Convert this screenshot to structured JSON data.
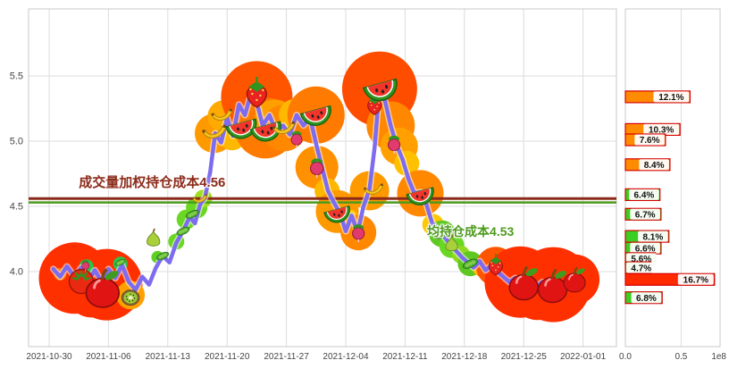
{
  "colors": {
    "background": "#ffffff",
    "grid": "#dcdcdc",
    "spine": "#c8c8c8",
    "tick_text": "#444444",
    "bar_edge": "#d40000",
    "label_box_bg": "#ffffff",
    "label_box_text": "#111111"
  },
  "chart_data": [
    {
      "type": "line",
      "title": "",
      "line_color": "#7d6cf0",
      "x_ticks": [
        "2021-10-30",
        "2021-11-06",
        "2021-11-13",
        "2021-11-20",
        "2021-11-27",
        "2021-12-04",
        "2021-12-11",
        "2021-12-18",
        "2021-12-25",
        "2022-01-01"
      ],
      "y_ticks": [
        4.0,
        4.5,
        5.0,
        5.5
      ],
      "ylim": [
        3.43,
        6.01
      ],
      "grid": "on",
      "line": [
        [
          0.5,
          4.02
        ],
        [
          1.3,
          3.96
        ],
        [
          2.1,
          4.04
        ],
        [
          3,
          3.96
        ],
        [
          3.8,
          4.03
        ],
        [
          4.6,
          3.93
        ],
        [
          5.4,
          4.01
        ],
        [
          6.2,
          3.92
        ],
        [
          7,
          4.02
        ],
        [
          7.8,
          3.95
        ],
        [
          8.6,
          4.05
        ],
        [
          9.4,
          3.92
        ],
        [
          10.2,
          3.86
        ],
        [
          11,
          3.96
        ],
        [
          11.8,
          3.9
        ],
        [
          12.6,
          4.03
        ],
        [
          13.4,
          4.12
        ],
        [
          14.2,
          4.07
        ],
        [
          15,
          4.22
        ],
        [
          15.8,
          4.31
        ],
        [
          16.6,
          4.42
        ],
        [
          17.2,
          4.37
        ],
        [
          17.8,
          4.51
        ],
        [
          18.4,
          4.57
        ],
        [
          19,
          4.76
        ],
        [
          19.6,
          5.06
        ],
        [
          20.3,
          4.99
        ],
        [
          21,
          5.18
        ],
        [
          21.7,
          5.04
        ],
        [
          22.4,
          5.28
        ],
        [
          23.1,
          5.2
        ],
        [
          23.8,
          5.36
        ],
        [
          24.5,
          5.3
        ],
        [
          25.2,
          5.12
        ],
        [
          26,
          5.2
        ],
        [
          26.8,
          5.07
        ],
        [
          27.6,
          5.12
        ],
        [
          28.4,
          5.05
        ],
        [
          29.2,
          5.2
        ],
        [
          30,
          5.12
        ],
        [
          30.8,
          5.18
        ],
        [
          31.5,
          4.98
        ],
        [
          32.2,
          4.8
        ],
        [
          32.9,
          4.62
        ],
        [
          33.6,
          4.53
        ],
        [
          34.3,
          4.45
        ],
        [
          35,
          4.31
        ],
        [
          35.7,
          4.43
        ],
        [
          36.4,
          4.3
        ],
        [
          37.1,
          4.5
        ],
        [
          37.8,
          4.63
        ],
        [
          38.4,
          4.95
        ],
        [
          39,
          5.42
        ],
        [
          39.6,
          5.32
        ],
        [
          40.3,
          5.12
        ],
        [
          41,
          4.97
        ],
        [
          41.7,
          4.86
        ],
        [
          42.4,
          4.71
        ],
        [
          43.1,
          4.6
        ],
        [
          43.8,
          4.61
        ],
        [
          44.5,
          4.52
        ],
        [
          45.2,
          4.37
        ],
        [
          45.9,
          4.32
        ],
        [
          46.6,
          4.27
        ],
        [
          47.3,
          4.21
        ],
        [
          48,
          4.16
        ],
        [
          48.7,
          4.11
        ],
        [
          49.4,
          4.07
        ],
        [
          50.1,
          4.03
        ],
        [
          50.8,
          4.08
        ],
        [
          51.5,
          4.01
        ],
        [
          52.2,
          4.05
        ],
        [
          52.9,
          4.0
        ],
        [
          53.6,
          3.96
        ],
        [
          54.3,
          3.92
        ],
        [
          55,
          3.95
        ],
        [
          55.8,
          3.9
        ],
        [
          56.6,
          3.93
        ],
        [
          57.4,
          3.88
        ],
        [
          58.2,
          3.92
        ],
        [
          59,
          3.88
        ],
        [
          60,
          3.91
        ],
        [
          61,
          3.88
        ],
        [
          62,
          3.91
        ]
      ],
      "bubbles": [
        [
          3,
          3.95,
          40,
          "#ff3000"
        ],
        [
          6.8,
          3.9,
          40,
          "#ff3000"
        ],
        [
          5,
          3.84,
          28,
          "#ff3000"
        ],
        [
          9.6,
          3.82,
          16,
          "#ffa000"
        ],
        [
          4.4,
          4.04,
          8,
          "#2fc24a"
        ],
        [
          8.4,
          4.06,
          8,
          "#2fc24a"
        ],
        [
          1.3,
          3.98,
          7,
          "#ff7a00"
        ],
        [
          12.8,
          4.11,
          7,
          "#5ecf25"
        ],
        [
          15,
          4.23,
          9,
          "#6ad723"
        ],
        [
          16.2,
          4.4,
          11,
          "#6ad723"
        ],
        [
          17.4,
          4.49,
          12,
          "#6ad723"
        ],
        [
          18.2,
          4.56,
          10,
          "#9fdf1f"
        ],
        [
          19.5,
          5.06,
          22,
          "#ff9900"
        ],
        [
          20.6,
          5.19,
          18,
          "#ffaa00"
        ],
        [
          21.6,
          5.04,
          16,
          "#ffb800"
        ],
        [
          22.5,
          5.28,
          19,
          "#ff9900"
        ],
        [
          23.4,
          5.25,
          26,
          "#ff7700"
        ],
        [
          24.5,
          5.34,
          40,
          "#ff5500"
        ],
        [
          25.5,
          5.1,
          34,
          "#ff7a00"
        ],
        [
          26.6,
          5.17,
          22,
          "#ffa000"
        ],
        [
          27.7,
          5.1,
          26,
          "#ff8800"
        ],
        [
          29,
          5.2,
          18,
          "#ffb800"
        ],
        [
          30.2,
          5.15,
          14,
          "#ffc800"
        ],
        [
          31.5,
          5.2,
          32,
          "#ff7a00"
        ],
        [
          31.6,
          4.8,
          24,
          "#ff9100"
        ],
        [
          32.8,
          4.62,
          14,
          "#ffb800"
        ],
        [
          34,
          4.46,
          24,
          "#ff9900"
        ],
        [
          35.4,
          4.4,
          11,
          "#ffc800"
        ],
        [
          36.5,
          4.3,
          20,
          "#ff8800"
        ],
        [
          37.8,
          4.62,
          22,
          "#ff9900"
        ],
        [
          39,
          5.4,
          42,
          "#ff4d00"
        ],
        [
          40.3,
          5.12,
          27,
          "#ff8800"
        ],
        [
          41.3,
          4.96,
          21,
          "#ffa000"
        ],
        [
          42.2,
          4.83,
          14,
          "#ffc000"
        ],
        [
          43.8,
          4.6,
          26,
          "#ff8800"
        ],
        [
          45.3,
          4.36,
          12,
          "#ffc800"
        ],
        [
          46.4,
          4.29,
          15,
          "#5fc722"
        ],
        [
          47.5,
          4.2,
          14,
          "#6ad723"
        ],
        [
          48.6,
          4.13,
          10,
          "#8fd91f"
        ],
        [
          49.7,
          4.06,
          14,
          "#5fc722"
        ],
        [
          51,
          4.03,
          10,
          "#ffb800"
        ],
        [
          52.7,
          4.04,
          22,
          "#ff5500"
        ],
        [
          55.6,
          3.92,
          40,
          "#ff3000"
        ],
        [
          59.5,
          3.9,
          42,
          "#ff3000"
        ],
        [
          57.6,
          3.82,
          28,
          "#ff3000"
        ],
        [
          62,
          3.94,
          28,
          "#ff3000"
        ]
      ],
      "fruits": [
        [
          3.8,
          3.93,
          36,
          "tomato"
        ],
        [
          6.3,
          3.86,
          46,
          "apple"
        ],
        [
          9.6,
          3.8,
          26,
          "kiwi"
        ],
        [
          4.3,
          4.05,
          15,
          "radish"
        ],
        [
          8.4,
          4.07,
          15,
          "peas"
        ],
        [
          12.3,
          4.24,
          26,
          "pear"
        ],
        [
          13.4,
          4.12,
          18,
          "peas"
        ],
        [
          15.8,
          4.31,
          19,
          "peas"
        ],
        [
          16.9,
          4.44,
          19,
          "peas"
        ],
        [
          17.8,
          4.56,
          20,
          "banana"
        ],
        [
          19.5,
          5.07,
          32,
          "banana"
        ],
        [
          20.4,
          5.2,
          28,
          "banana"
        ],
        [
          22.7,
          5.12,
          38,
          "watermelon"
        ],
        [
          24.5,
          5.37,
          40,
          "strawberry"
        ],
        [
          25.6,
          5.1,
          38,
          "watermelon"
        ],
        [
          27.7,
          5.1,
          30,
          "banana"
        ],
        [
          29.2,
          5.02,
          22,
          "radish"
        ],
        [
          31.5,
          5.22,
          38,
          "watermelon"
        ],
        [
          31.6,
          4.8,
          26,
          "radish"
        ],
        [
          34,
          4.46,
          32,
          "watermelon"
        ],
        [
          36.5,
          4.3,
          24,
          "radish"
        ],
        [
          38.3,
          4.63,
          26,
          "banana"
        ],
        [
          38.4,
          5.28,
          28,
          "strawberry"
        ],
        [
          39.1,
          5.42,
          42,
          "watermelon"
        ],
        [
          40.7,
          4.98,
          24,
          "radish"
        ],
        [
          43.8,
          4.6,
          34,
          "watermelon"
        ],
        [
          46.4,
          4.29,
          22,
          "peas"
        ],
        [
          47.5,
          4.2,
          24,
          "pear"
        ],
        [
          49.7,
          4.06,
          22,
          "peas"
        ],
        [
          52.7,
          4.05,
          28,
          "strawberry"
        ],
        [
          56,
          3.9,
          40,
          "apple"
        ],
        [
          59.4,
          3.88,
          40,
          "apple"
        ],
        [
          62,
          3.93,
          30,
          "apple"
        ]
      ],
      "ref_lines": [
        {
          "price": 4.56,
          "color": "#8b2b1a",
          "line_width": 3,
          "label": "成交量加权持仓成本4.56",
          "label_day": 3.5,
          "label_dy": -26
        },
        {
          "price": 4.53,
          "color": "#4c9a1c",
          "line_width": 2.5,
          "label": "均持仓成本4.53",
          "label_day": 44.6,
          "label_dy": 24
        }
      ]
    },
    {
      "type": "bar",
      "orientation": "horizontal",
      "x_ticks": [
        0.0,
        0.5
      ],
      "x_unit": "1e8",
      "xlim": [
        0,
        0.85
      ],
      "legend": "none",
      "bars": [
        {
          "price": 5.34,
          "pct": "12.1%",
          "value": 0.58,
          "color": "#ff8c00"
        },
        {
          "price": 5.09,
          "pct": "10.3%",
          "value": 0.49,
          "color": "#ff8c00"
        },
        {
          "price": 5.01,
          "pct": "7.6%",
          "value": 0.36,
          "color": "#ff8c00"
        },
        {
          "price": 4.82,
          "pct": "8.4%",
          "value": 0.4,
          "color": "#ff8c00"
        },
        {
          "price": 4.59,
          "pct": "6.4%",
          "value": 0.31,
          "color": "#3bcf22"
        },
        {
          "price": 4.44,
          "pct": "6.7%",
          "value": 0.32,
          "color": "#3bcf22"
        },
        {
          "price": 4.27,
          "pct": "8.1%",
          "value": 0.39,
          "color": "#3bcf22"
        },
        {
          "price": 4.18,
          "pct": "6.6%",
          "value": 0.32,
          "color": "#3bcf22"
        },
        {
          "price": 4.1,
          "pct": "5.6%",
          "value": 0.27,
          "color": "#3bcf22"
        },
        {
          "price": 4.03,
          "pct": "4.7%",
          "value": 0.23,
          "color": "#3bcf22"
        },
        {
          "price": 3.94,
          "pct": "16.7%",
          "value": 0.8,
          "color": "#ff2a00"
        },
        {
          "price": 3.8,
          "pct": "6.8%",
          "value": 0.33,
          "color": "#3bcf22"
        }
      ]
    }
  ]
}
